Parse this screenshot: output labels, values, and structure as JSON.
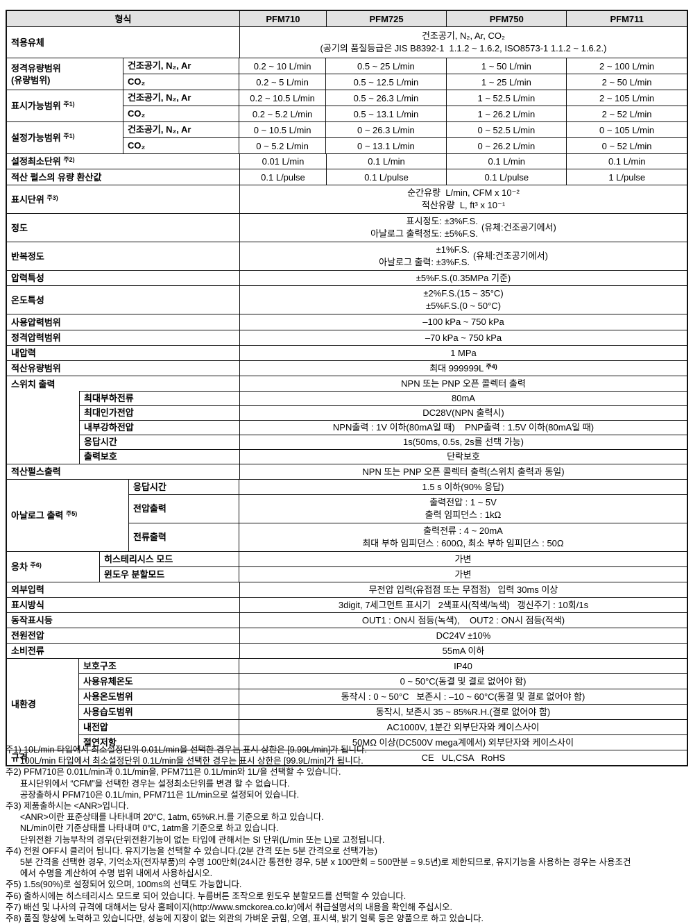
{
  "header": {
    "col_label": "형식",
    "models": [
      "PFM710",
      "PFM725",
      "PFM750",
      "PFM711"
    ]
  },
  "spec": {
    "fluid": {
      "label": "적용유체",
      "line1": "건조공기, N₂, Ar, CO₂",
      "line2": "(공기의 품질등급은 JIS B8392-1  1.1.2 ~ 1.6.2, ISO8573-1 1.1.2 ~ 1.6.2.)"
    },
    "rated": {
      "label1": "정격유량범위",
      "label2": "(유량범위)",
      "subrows": [
        {
          "sub": "건조공기, N₂, Ar",
          "values": [
            "0.2 ~ 10 L/min",
            "0.5 ~ 25 L/min",
            "1 ~ 50 L/min",
            "2 ~ 100 L/min"
          ]
        },
        {
          "sub": "CO₂",
          "values": [
            "0.2 ~ 5 L/min",
            "0.5 ~ 12.5 L/min",
            "1 ~ 25 L/min",
            "2 ~ 50 L/min"
          ]
        }
      ]
    },
    "display_range": {
      "label": "표시가능범위",
      "note": "주1)",
      "subrows": [
        {
          "sub": "건조공기, N₂, Ar",
          "values": [
            "0.2 ~ 10.5 L/min",
            "0.5 ~ 26.3 L/min",
            "1 ~ 52.5 L/min",
            "2 ~ 105 L/min"
          ]
        },
        {
          "sub": "CO₂",
          "values": [
            "0.2 ~ 5.2 L/min",
            "0.5 ~ 13.1 L/min",
            "1 ~ 26.2 L/min",
            "2 ~ 52 L/min"
          ]
        }
      ]
    },
    "setting_range": {
      "label": "설정가능범위",
      "note": "주1)",
      "subrows": [
        {
          "sub": "건조공기, N₂, Ar",
          "values": [
            "0 ~ 10.5 L/min",
            "0 ~ 26.3 L/min",
            "0 ~ 52.5 L/min",
            "0 ~ 105 L/min"
          ]
        },
        {
          "sub": "CO₂",
          "values": [
            "0 ~ 5.2 L/min",
            "0 ~ 13.1 L/min",
            "0 ~ 26.2 L/min",
            "0 ~ 52 L/min"
          ]
        }
      ]
    },
    "min_unit": {
      "label": "설정최소단위",
      "note": "주2)",
      "values": [
        "0.01 L/min",
        "0.1 L/min",
        "0.1 L/min",
        "0.1 L/min"
      ]
    },
    "pulse_conv": {
      "label": "적산 펄스의 유량 환산값",
      "values": [
        "0.1 L/pulse",
        "0.1 L/pulse",
        "0.1 L/pulse",
        "1 L/pulse"
      ]
    },
    "display_unit": {
      "label": "표시단위",
      "note": "주3)",
      "line1": "순간유량  L/min, CFM x 10⁻²",
      "line2": "적산유량  L, ft³ x 10⁻¹"
    },
    "accuracy": {
      "label": "정도",
      "line1": "표시정도: ±3%F.S.",
      "line2": "아날로그 출력정도: ±5%F.S.",
      "paren": "(유체:건조공기에서)"
    },
    "repeatability": {
      "label": "반복정도",
      "line1": "±1%F.S.",
      "line2": "아날로그 출력: ±3%F.S.",
      "paren": "(유체:건조공기에서)"
    },
    "pressure_char": {
      "label": "압력특성",
      "value": "±5%F.S.(0.35MPa 기준)"
    },
    "temp_char": {
      "label": "온도특성",
      "line1": "±2%F.S.(15 ~ 35°C)",
      "line2": "±5%F.S.(0 ~ 50°C)"
    },
    "op_pressure": {
      "label": "사용압력범위",
      "value": "–100 kPa ~ 750 kPa"
    },
    "rated_pressure": {
      "label": "정격압력범위",
      "value": "–70 kPa ~ 750 kPa"
    },
    "proof_pressure": {
      "label": "내압력",
      "value": "1 MPa"
    },
    "acc_flow": {
      "label": "적산유량범위",
      "value": "최대 999999L",
      "note": "주4)"
    },
    "switch_output": {
      "label": "스위치 출력",
      "value": "NPN 또는 PNP 오픈 콜렉터 출력",
      "subrows": [
        {
          "sub": "최대부하전류",
          "value": "80mA"
        },
        {
          "sub": "최대인가전압",
          "value": "DC28V(NPN 출력시)"
        },
        {
          "sub": "내부강하전압",
          "value": "NPN출력 : 1V 이하(80mA일 때)    PNP출력 : 1.5V 이하(80mA일 때)"
        },
        {
          "sub": "응답시간",
          "value": "1s(50ms, 0.5s, 2s를 선택 가능)"
        },
        {
          "sub": "출력보호",
          "value": "단락보호"
        }
      ]
    },
    "pulse_output": {
      "label": "적산펄스출력",
      "value": "NPN 또는 PNP 오픈 콜렉터 출력(스위치 출력과 동일)"
    },
    "analog_output": {
      "label": "아날로그 출력",
      "note": "주5)",
      "subrows": [
        {
          "sub": "응답시간",
          "line1": "1.5 s 이하(90% 응답)",
          "line2": ""
        },
        {
          "sub": "전압출력",
          "line1": "출력전압 : 1 ~ 5V",
          "line2": "출력 임피던스 : 1kΩ"
        },
        {
          "sub": "전류출력",
          "line1": "출력전류 : 4 ~ 20mA",
          "line2": "최대 부하 임피던스 : 600Ω, 최소 부하 임피던스 : 50Ω"
        }
      ]
    },
    "hysteresis": {
      "label": "응차",
      "note": "주6)",
      "subrows": [
        {
          "sub": "히스테리시스 모드",
          "value": "가변"
        },
        {
          "sub": "윈도우 분할모드",
          "value": "가변"
        }
      ]
    },
    "ext_input": {
      "label": "외부입력",
      "value": "무전압 입력(유접점 또는 무접점)   입력 30ms 이상"
    },
    "display_method": {
      "label": "표시방식",
      "value": "3digit, 7세그먼트 표시기   2색표시(적색/녹색)   갱신주기 : 10회/1s"
    },
    "indicator": {
      "label": "동작표시등",
      "value": "OUT1 : ON시 점등(녹색),    OUT2 : ON시 점등(적색)"
    },
    "power": {
      "label": "전원전압",
      "value": "DC24V ±10%"
    },
    "current": {
      "label": "소비전류",
      "value": "55mA 이하"
    },
    "environment": {
      "label": "내환경",
      "subrows": [
        {
          "sub": "보호구조",
          "value": "IP40"
        },
        {
          "sub": "사용유체온도",
          "value": "0 ~ 50°C(동결 및 결로 없어야 함)"
        },
        {
          "sub": "사용온도범위",
          "value": "동작시 : 0 ~ 50°C   보존시 : –10 ~ 60°C(동결 및 결로 없어야 함)"
        },
        {
          "sub": "사용습도범위",
          "value": "동작시, 보존시 35 ~ 85%R.H.(결로 없어야 함)"
        },
        {
          "sub": "내전압",
          "value": "AC1000V, 1분간 외부단자와 케이스사이"
        },
        {
          "sub": "절연저항",
          "value": "50MΩ 이상(DC500V mega계에서) 외부단자와 케이스사이"
        }
      ]
    },
    "standards": {
      "label": "규격",
      "value": "CE   UL,CSA   RoHS"
    }
  },
  "footnotes": [
    "주1) 10L/min 타입에서 최소설정단위 0.01L/min을 선택한 경우는 표시 상한은 [9.99L/min]가 됩니다.",
    "      100L/min 타입에서 최소설정단위 0.1L/min을 선택한 경우는 표시 상한은 [99.9L/min]가 됩니다.",
    "주2) PFM710은 0.01L/min과 0.1L/min을, PFM711은 0.1L/min와 1L/을 선택할 수 있습니다.",
    "      표시단위에서 “CFM”을 선택한 경우는 설정최소단위를 변경 할 수 없습니다.",
    "      공장출하시 PFM710은 0.1L/min, PFM711은 1L/min으로 설정되어 있습니다.",
    "주3) 제품출하시는 <ANR>입니다.",
    "      <ANR>이란 표준상태를 나타내며 20°C, 1atm, 65%R.H.를 기준으로 하고 있습니다.",
    "      NL/min이란 기준상태를 나타내며 0°C, 1atm을 기준으로 하고 있습니다.",
    "      단위전환 기능부착의 경우(단위전환기능이 없는 타입에 관해서는 SI 단위(L/min 또는 L)로 고정됩니다.",
    "주4) 전원 OFF시 클리어 됩니다. 유지기능을 선택할 수 있습니다.(2분 간격 또는 5분 간격으로 선택가능)",
    "      5분 간격을 선택한 경우, 기억소자(전자부품)의 수명 100만회(24시간 통전한 경우, 5분 x 100만회 = 500만분 = 9.5년)로 제한되므로, 유지기능을 사용하는 경우는 사용조건",
    "      에서 수명을 계산하여 수명 범위 내에서 사용하십시오.",
    "주5) 1.5s(90%)로 설정되어 있으며, 100ms의 선택도 가능합니다.",
    "주6) 출하시에는 히스테리시스 모드로 되어 있습니다. 누름버튼 조작으로 윈도우 분할모드를 선택할 수 있습니다.",
    "주7) 배선 및 나사의 규격에 대해서는 당사 홈페이지(http://www.smckorea.co.kr)에서 취급설명서의 내용을 확인해 주십시오.",
    "주8) 품질 향상에 노력하고 있습니다만, 성능에 지장이 없는 외관의 가벼운 긁힘, 오염, 표시색, 밝기 얼룩 등은 양품으로 하고 있습니다."
  ]
}
